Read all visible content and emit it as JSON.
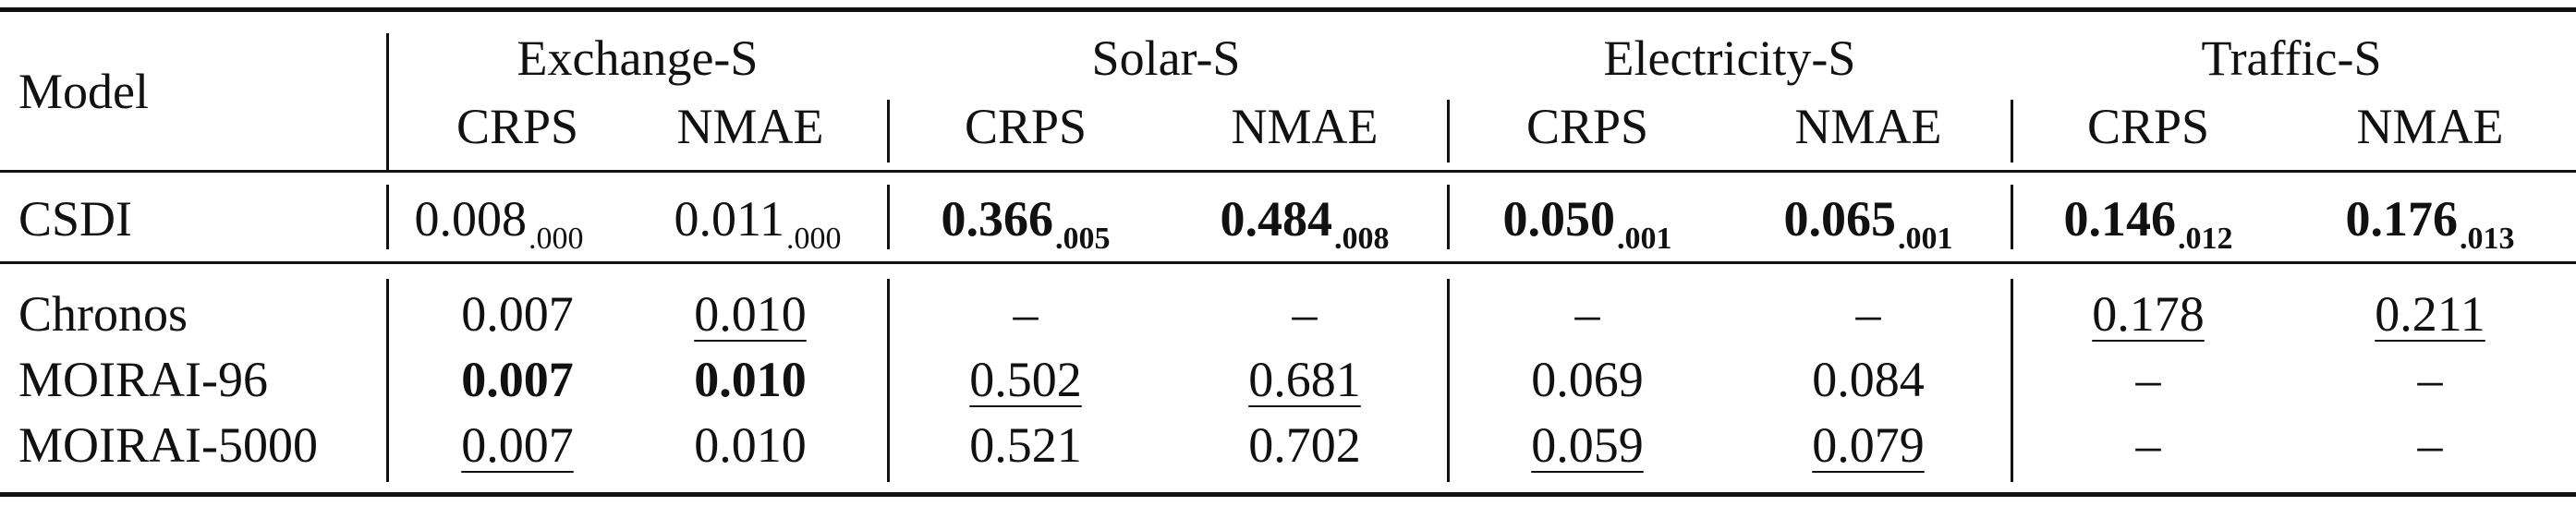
{
  "table": {
    "model_header": "Model",
    "groups": [
      "Exchange-S",
      "Solar-S",
      "Electricity-S",
      "Traffic-S"
    ],
    "metrics": [
      "CRPS",
      "NMAE",
      "CRPS",
      "NMAE",
      "CRPS",
      "NMAE",
      "CRPS",
      "NMAE"
    ],
    "csdi": {
      "model": "CSDI",
      "cells": [
        {
          "value": "0.008",
          "sub": ".000",
          "bold": false
        },
        {
          "value": "0.011",
          "sub": ".000",
          "bold": false
        },
        {
          "value": "0.366",
          "sub": ".005",
          "bold": true
        },
        {
          "value": "0.484",
          "sub": ".008",
          "bold": true
        },
        {
          "value": "0.050",
          "sub": ".001",
          "bold": true
        },
        {
          "value": "0.065",
          "sub": ".001",
          "bold": true
        },
        {
          "value": "0.146",
          "sub": ".012",
          "bold": true
        },
        {
          "value": "0.176",
          "sub": ".013",
          "bold": true
        }
      ]
    },
    "rows": [
      {
        "model": "Chronos",
        "cells": [
          {
            "value": "0.007",
            "bold": false,
            "underline": false
          },
          {
            "value": "0.010",
            "bold": false,
            "underline": true
          },
          {
            "value": "–",
            "bold": false,
            "underline": false
          },
          {
            "value": "–",
            "bold": false,
            "underline": false
          },
          {
            "value": "–",
            "bold": false,
            "underline": false
          },
          {
            "value": "–",
            "bold": false,
            "underline": false
          },
          {
            "value": "0.178",
            "bold": false,
            "underline": true
          },
          {
            "value": "0.211",
            "bold": false,
            "underline": true
          }
        ]
      },
      {
        "model": "MOIRAI-96",
        "cells": [
          {
            "value": "0.007",
            "bold": true,
            "underline": false
          },
          {
            "value": "0.010",
            "bold": true,
            "underline": false
          },
          {
            "value": "0.502",
            "bold": false,
            "underline": true
          },
          {
            "value": "0.681",
            "bold": false,
            "underline": true
          },
          {
            "value": "0.069",
            "bold": false,
            "underline": false
          },
          {
            "value": "0.084",
            "bold": false,
            "underline": false
          },
          {
            "value": "–",
            "bold": false,
            "underline": false
          },
          {
            "value": "–",
            "bold": false,
            "underline": false
          }
        ]
      },
      {
        "model": "MOIRAI-5000",
        "cells": [
          {
            "value": "0.007",
            "bold": false,
            "underline": true
          },
          {
            "value": "0.010",
            "bold": false,
            "underline": false
          },
          {
            "value": "0.521",
            "bold": false,
            "underline": false
          },
          {
            "value": "0.702",
            "bold": false,
            "underline": false
          },
          {
            "value": "0.059",
            "bold": false,
            "underline": true
          },
          {
            "value": "0.079",
            "bold": false,
            "underline": true
          },
          {
            "value": "–",
            "bold": false,
            "underline": false
          },
          {
            "value": "–",
            "bold": false,
            "underline": false
          }
        ]
      }
    ]
  }
}
